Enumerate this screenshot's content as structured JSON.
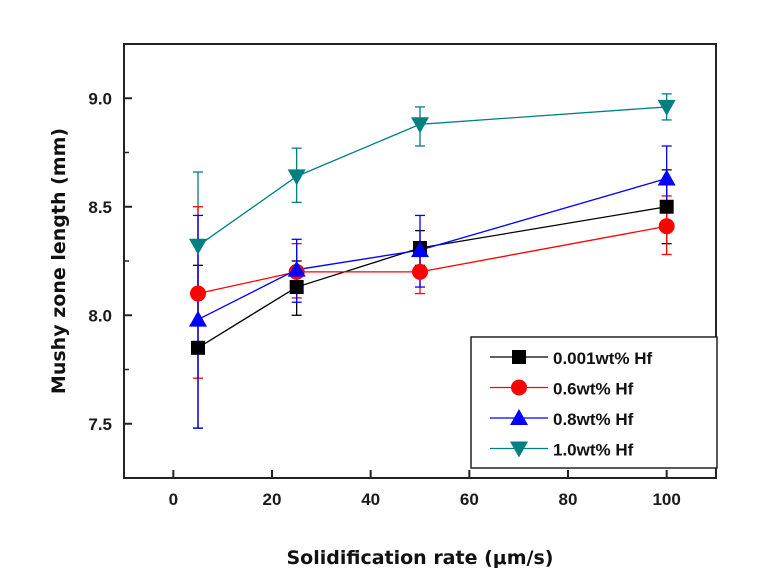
{
  "chart_data": {
    "type": "line",
    "title": "",
    "xlabel": "Solidification rate  (μm/s)",
    "ylabel": "Mushy zone length (mm)",
    "xlim": [
      -10,
      110
    ],
    "ylim": [
      7.25,
      9.25
    ],
    "xticks": [
      0,
      20,
      40,
      60,
      80,
      100
    ],
    "xtick_labels": [
      "0",
      "20",
      "40",
      "60",
      "80",
      "100"
    ],
    "yticks": [
      7.5,
      8.0,
      8.5,
      9.0
    ],
    "ytick_labels": [
      "7.5",
      "8.0",
      "8.5",
      "9.0"
    ],
    "y_minor_ticks": [
      7.75,
      8.25,
      8.75
    ],
    "grid": false,
    "legend_position": "bottom-right",
    "x": [
      5,
      25,
      50,
      100
    ],
    "series": [
      {
        "name": "0.001wt% Hf",
        "color": "#000000",
        "marker": "square",
        "values": [
          7.85,
          8.13,
          8.31,
          8.5
        ],
        "err_low": [
          7.48,
          8.0,
          8.23,
          8.33
        ],
        "err_high": [
          8.23,
          8.25,
          8.39,
          8.67
        ]
      },
      {
        "name": "0.6wt% Hf",
        "color": "#ff0000",
        "marker": "circle",
        "values": [
          8.1,
          8.2,
          8.2,
          8.41
        ],
        "err_low": [
          7.71,
          8.08,
          8.1,
          8.28
        ],
        "err_high": [
          8.5,
          8.33,
          8.3,
          8.55
        ]
      },
      {
        "name": "0.8wt% Hf",
        "color": "#0000ff",
        "marker": "triangle-up",
        "values": [
          7.98,
          8.21,
          8.3,
          8.63
        ],
        "err_low": [
          7.48,
          8.06,
          8.13,
          8.48
        ],
        "err_high": [
          8.46,
          8.35,
          8.46,
          8.78
        ]
      },
      {
        "name": "1.0wt% Hf",
        "color": "#008080",
        "marker": "triangle-down",
        "values": [
          8.32,
          8.64,
          8.88,
          8.96
        ],
        "err_low": [
          7.98,
          8.52,
          8.78,
          8.9
        ],
        "err_high": [
          8.66,
          8.77,
          8.96,
          9.02
        ]
      }
    ]
  }
}
